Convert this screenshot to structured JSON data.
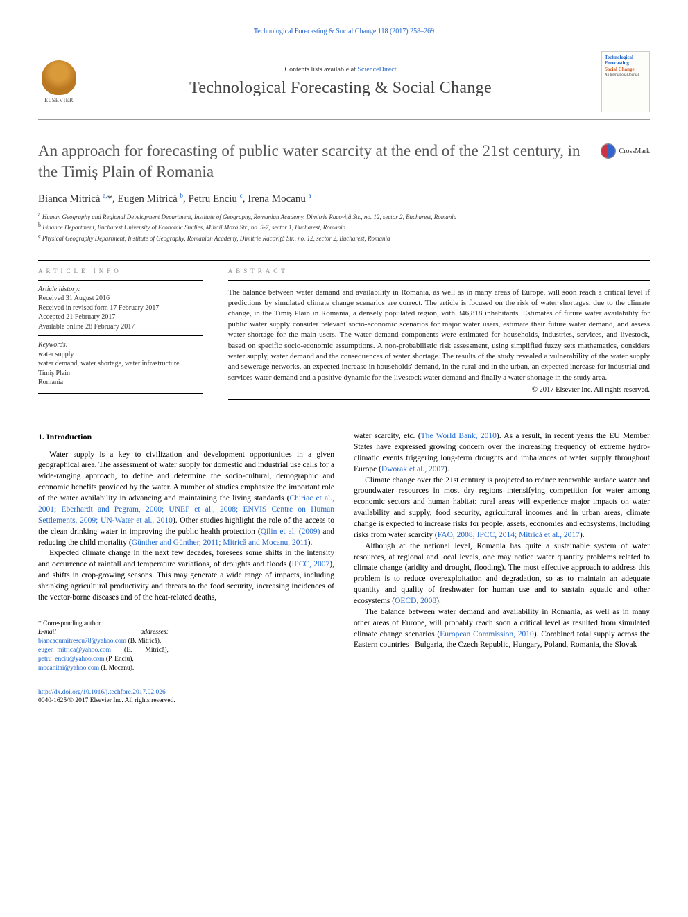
{
  "running_head": "Technological Forecasting & Social Change 118 (2017) 258–269",
  "header": {
    "contents_prefix": "Contents lists available at ",
    "contents_link": "ScienceDirect",
    "journal_title": "Technological Forecasting & Social Change",
    "cover": {
      "line1": "Technological",
      "line2": "Forecasting",
      "line3": "Social Change",
      "sub": "An International Journal"
    },
    "publisher_logo_text": "ELSEVIER"
  },
  "article": {
    "title": "An approach for forecasting of public water scarcity at the end of the 21st century, in the Timiş Plain of Romania",
    "crossmark": "CrossMark",
    "authors_html": "Bianca Mitrică <sup>a,</sup>*, Eugen Mitrică <sup>b</sup>, Petru Enciu <sup>c</sup>, Irena Mocanu <sup>a</sup>",
    "affiliations": {
      "a": "Human Geography and Regional Development Department, Institute of Geography, Romanian Academy, Dimitrie Racoviţă Str., no. 12, sector 2, Bucharest, Romania",
      "b": "Finance Department, Bucharest University of Economic Studies, Mihail Moxa Str., no. 5-7, sector 1, Bucharest, Romania",
      "c": "Physical Geography Department, Institute of Geography, Romanian Academy, Dimitrie Racoviţă Str., no. 12, sector 2, Bucharest, Romania"
    }
  },
  "meta": {
    "info_label": "article info",
    "history_label": "Article history:",
    "received": "Received 31 August 2016",
    "revised": "Received in revised form 17 February 2017",
    "accepted": "Accepted 21 February 2017",
    "online": "Available online 28 February 2017",
    "kw_label": "Keywords:",
    "keywords": [
      "water supply",
      "water demand, water shortage, water infrastructure",
      "Timiş Plain",
      "Romania"
    ]
  },
  "abstract": {
    "label": "abstract",
    "text": "The balance between water demand and availability in Romania, as well as in many areas of Europe, will soon reach a critical level if predictions by simulated climate change scenarios are correct. The article is focused on the risk of water shortages, due to the climate change, in the Timiş Plain in Romania, a densely populated region, with 346,818 inhabitants. Estimates of future water availability for public water supply consider relevant socio-economic scenarios for major water users, estimate their future water demand, and assess water shortage for the main users. The water demand components were estimated for households, industries, services, and livestock, based on specific socio-economic assumptions. A non-probabilistic risk assessment, using simplified fuzzy sets mathematics, considers water supply, water demand and the consequences of water shortage. The results of the study revealed a vulnerability of the water supply and sewerage networks, an expected increase in households' demand, in the rural and in the urban, an expected increase for industrial and services water demand and a positive dynamic for the livestock water demand and finally a water shortage in the study area.",
    "copyright": "© 2017 Elsevier Inc. All rights reserved."
  },
  "body": {
    "heading": "1. Introduction",
    "p1a": "Water supply is a key to civilization and development opportunities in a given geographical area. The assessment of water supply for domestic and industrial use calls for a wide-ranging approach, to define and determine the socio-cultural, demographic and economic benefits provided by the water. A number of studies emphasize the important role of the water availability in advancing and maintaining the living standards (",
    "p1_link1": "Chiriac et al., 2001; Eberhardt and Pegram, 2000; UNEP et al., 2008; ENVIS Centre on Human Settlements, 2009; UN-Water et al., 2010",
    "p1b": "). Other studies highlight the role of the access to the clean drinking water in improving the public health protection (",
    "p1_link2": "Qilin et al. (2009)",
    "p1c": " and reducing the child mortality (",
    "p1_link3": "Günther and Günther, 2011; Mitrică and Mocanu, 2011",
    "p1d": ").",
    "p2a": "Expected climate change in the next few decades, foresees some shifts in the intensity and occurrence of rainfall and temperature variations, of droughts and floods (",
    "p2_link1": "IPCC, 2007",
    "p2b": "), and shifts in crop-growing seasons. This may generate a wide range of impacts, including shrinking agricultural productivity and threats to the food security, increasing incidences of the vector-borne diseases and of the heat-related deaths,",
    "p3a": "water scarcity, etc. (",
    "p3_link1": "The World Bank, 2010",
    "p3b": "). As a result, in recent years the EU Member States have expressed growing concern over the increasing frequency of extreme hydro-climatic events triggering long-term droughts and imbalances of water supply throughout Europe (",
    "p3_link2": "Dworak et al., 2007",
    "p3c": ").",
    "p4a": "Climate change over the 21st century is projected to reduce renewable surface water and groundwater resources in most dry regions intensifying competition for water among economic sectors and human habitat: rural areas will experience major impacts on water availability and supply, food security, agricultural incomes and in urban areas, climate change is expected to increase risks for people, assets, economies and ecosystems, including risks from water scarcity (",
    "p4_link1": "FAO, 2008; IPCC, 2014; Mitrică et al., 2017",
    "p4b": ").",
    "p5a": "Although at the national level, Romania has quite a sustainable system of water resources, at regional and local levels, one may notice water quantity problems related to climate change (aridity and drought, flooding). The most effective approach to address this problem is to reduce overexploitation and degradation, so as to maintain an adequate quantity and quality of freshwater for human use and to sustain aquatic and other ecosystems (",
    "p5_link1": "OECD, 2008",
    "p5b": ").",
    "p6a": "The balance between water demand and availability in Romania, as well as in many other areas of Europe, will probably reach soon a critical level as resulted from simulated climate change scenarios (",
    "p6_link1": "European Commission, 2010",
    "p6b": "). Combined total supply across the Eastern countries –Bulgaria, the Czech Republic, Hungary, Poland, Romania, the Slovak"
  },
  "footnotes": {
    "corr": "* Corresponding author.",
    "email_label": "E-mail addresses: ",
    "e1": "biancadumitrescu78@yahoo.com",
    "e1_who": " (B. Mitrică),",
    "e2": "eugen_mitrica@yahoo.com",
    "e2_who": " (E. Mitrică), ",
    "e3": "petru_enciu@yahoo.com",
    "e3_who": " (P. Enciu),",
    "e4": "mocanitai@yahoo.com",
    "e4_who": " (I. Mocanu)."
  },
  "footer": {
    "doi": "http://dx.doi.org/10.1016/j.techfore.2017.02.026",
    "issn_line": "0040-1625/© 2017 Elsevier Inc. All rights reserved."
  },
  "colors": {
    "link": "#2266cc",
    "text": "#000000",
    "muted": "#555555",
    "rule": "#000000"
  }
}
